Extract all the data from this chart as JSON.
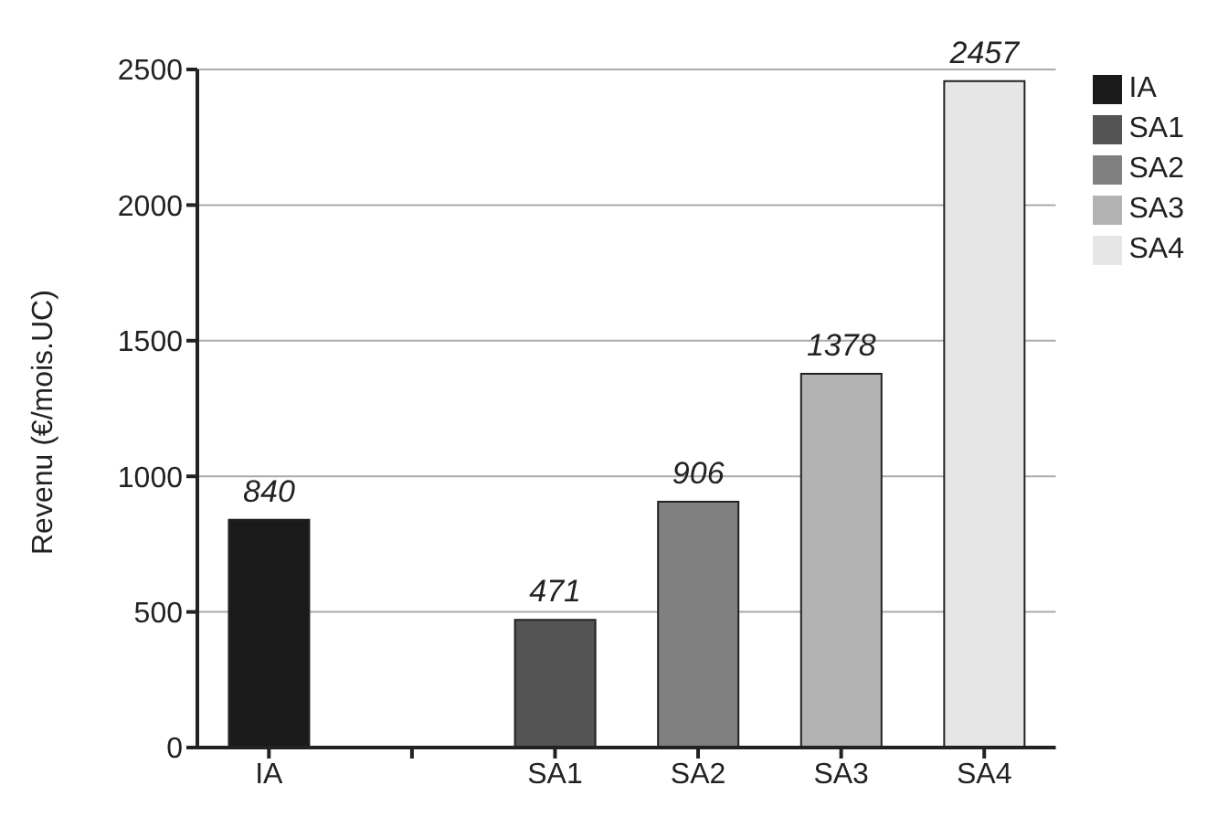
{
  "chart_data": {
    "type": "bar",
    "ylabel": "Revenu (€/mois.UC)",
    "categories": [
      "IA",
      null,
      "SA1",
      "SA2",
      "SA3",
      "SA4"
    ],
    "series": [
      {
        "name": "IA",
        "color": "#1a1a1a",
        "values": [
          840,
          null,
          null,
          null,
          null,
          null
        ]
      },
      {
        "name": "SA1",
        "color": "#545454",
        "values": [
          null,
          null,
          471,
          null,
          null,
          null
        ]
      },
      {
        "name": "SA2",
        "color": "#808080",
        "values": [
          null,
          null,
          null,
          906,
          null,
          null
        ]
      },
      {
        "name": "SA3",
        "color": "#b3b3b3",
        "values": [
          null,
          null,
          null,
          null,
          1378,
          null
        ]
      },
      {
        "name": "SA4",
        "color": "#e6e6e6",
        "values": [
          null,
          null,
          null,
          null,
          null,
          2457
        ]
      }
    ],
    "stacked": true,
    "ylim": [
      0,
      2500
    ],
    "yticks": [
      0,
      500,
      1000,
      1500,
      2000,
      2500
    ],
    "grid": "y",
    "legend": "right",
    "data_labels": true
  }
}
